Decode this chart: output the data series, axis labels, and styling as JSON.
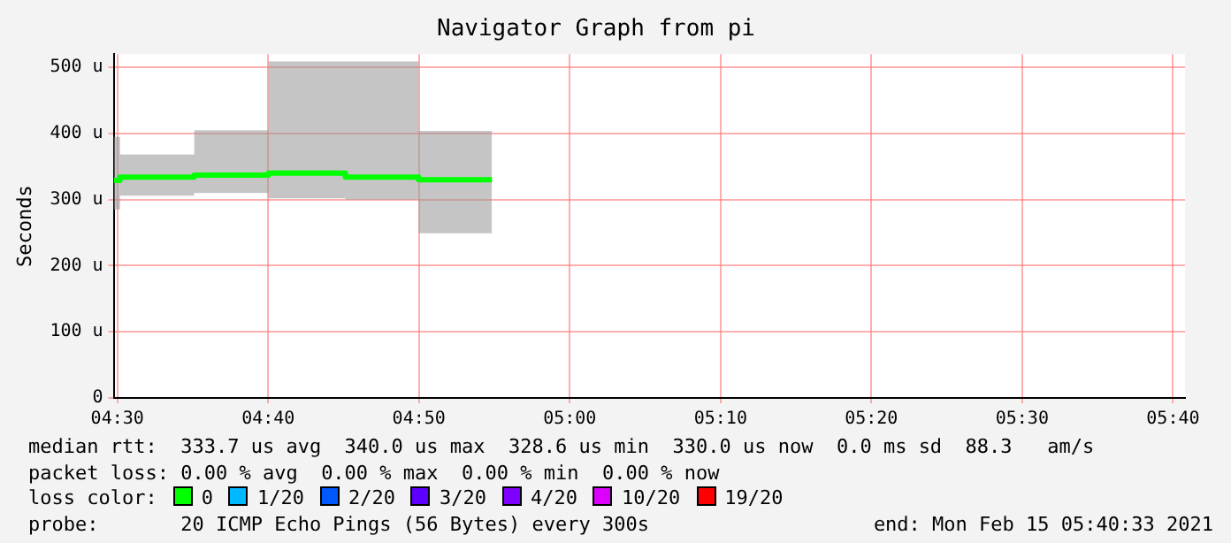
{
  "chart_data": {
    "type": "step",
    "title": "Navigator Graph from pi",
    "ylabel": "Seconds",
    "x": [
      4.496,
      4.503,
      4.585,
      4.667,
      4.752,
      4.833,
      4.914
    ],
    "series": [
      {
        "color": "#00ff00",
        "values": [
          329,
          329,
          334,
          337,
          340,
          334,
          330
        ],
        "lower": [
          285,
          285,
          306,
          310,
          302,
          300,
          249
        ],
        "upper": [
          395,
          395,
          368,
          405,
          509,
          509,
          404
        ]
      }
    ],
    "xlim": [
      4.496,
      5.68
    ],
    "xticks": [
      {
        "value": 4.5,
        "label": "04:30"
      },
      {
        "value": 4.6667,
        "label": "04:40"
      },
      {
        "value": 4.8333,
        "label": "04:50"
      },
      {
        "value": 5,
        "label": "05:00"
      },
      {
        "value": 5.1667,
        "label": "05:10"
      },
      {
        "value": 5.3333,
        "label": "05:20"
      },
      {
        "value": 5.5,
        "label": "05:30"
      },
      {
        "value": 5.6667,
        "label": "05:40"
      }
    ],
    "ylim": [
      0,
      520
    ],
    "yticks": [
      0,
      {
        "value": 100,
        "label": "100 u"
      },
      {
        "value": 200,
        "label": "200 u"
      },
      {
        "value": 300,
        "label": "300 u"
      },
      {
        "value": 400,
        "label": "400 u"
      },
      {
        "value": 500,
        "label": "500 u"
      }
    ],
    "grid": true,
    "legend": false,
    "marker": "none",
    "line_style": "solid",
    "annotations": [
      "median rtt:  333.7 us avg  340.0 us max  328.6 us min  330.0 us now  0.0 ms sd  88.3   am/s",
      "packet loss: 0.00 % avg  0.00 % max  0.00 % min  0.00 % now",
      "loss color:",
      "0",
      "1/20",
      "2/20",
      "3/20",
      "4/20",
      "10/20",
      "19/20",
      "probe:       20 ICMP Echo Pings (56 Bytes) every 300s",
      "end: Mon Feb 15 05:40:33 2021"
    ]
  }
}
